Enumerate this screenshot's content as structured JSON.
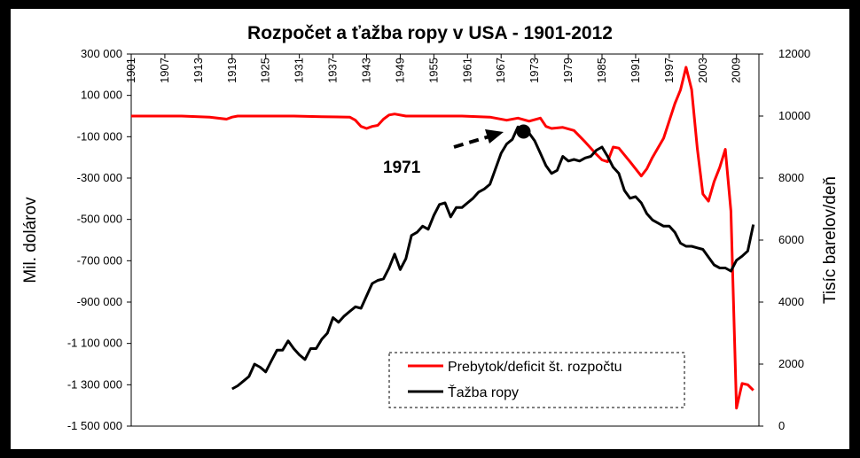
{
  "chart_data": {
    "type": "line",
    "title": "Rozpočet a ťažba ropy v USA - 1901-2012",
    "ylabel": "Mil. dolárov",
    "y2label": "Tisíc barelov/deň",
    "ylim": [
      -1500000,
      300000
    ],
    "y2lim": [
      0,
      12000
    ],
    "xlim": [
      1901,
      2013
    ],
    "y_ticks": [
      "300 000",
      "100 000",
      "-100 000",
      "-300 000",
      "-500 000",
      "-700 000",
      "-900 000",
      "-1 100 000",
      "-1 300 000",
      "-1 500 000"
    ],
    "y_tick_values": [
      300000,
      100000,
      -100000,
      -300000,
      -500000,
      -700000,
      -900000,
      -1100000,
      -1300000,
      -1500000
    ],
    "y2_ticks": [
      "12000",
      "10000",
      "8000",
      "6000",
      "4000",
      "2000",
      "0"
    ],
    "y2_tick_values": [
      12000,
      10000,
      8000,
      6000,
      4000,
      2000,
      0
    ],
    "x_ticks": [
      "1901",
      "1907",
      "1913",
      "1919",
      "1925",
      "1931",
      "1937",
      "1943",
      "1949",
      "1955",
      "1961",
      "1967",
      "1973",
      "1979",
      "1985",
      "1991",
      "1997",
      "2003",
      "2009"
    ],
    "x_tick_values": [
      1901,
      1907,
      1913,
      1919,
      1925,
      1931,
      1937,
      1943,
      1949,
      1955,
      1961,
      1967,
      1973,
      1979,
      1985,
      1991,
      1997,
      2003,
      2009
    ],
    "grid": false,
    "legend_position": "bottom-center",
    "annotation": {
      "label": "1971",
      "x": 1971,
      "y2": 9500
    },
    "series": [
      {
        "name": "Prebytok/deficit št. rozpočtu",
        "color": "#ff0000",
        "axis": "left",
        "x": [
          1901,
          1905,
          1910,
          1915,
          1918,
          1919,
          1920,
          1925,
          1930,
          1935,
          1940,
          1941,
          1942,
          1943,
          1944,
          1945,
          1946,
          1947,
          1948,
          1950,
          1955,
          1960,
          1965,
          1968,
          1970,
          1972,
          1974,
          1975,
          1976,
          1978,
          1980,
          1982,
          1984,
          1985,
          1986,
          1987,
          1988,
          1990,
          1992,
          1993,
          1994,
          1996,
          1998,
          1999,
          2000,
          2001,
          2002,
          2003,
          2004,
          2005,
          2006,
          2007,
          2008,
          2009,
          2010,
          2011,
          2012
        ],
        "values": [
          0,
          0,
          0,
          -5000,
          -15000,
          -5000,
          0,
          0,
          0,
          -3000,
          -5000,
          -20000,
          -50000,
          -60000,
          -50000,
          -45000,
          -15000,
          5000,
          10000,
          0,
          0,
          0,
          -5000,
          -20000,
          -10000,
          -25000,
          -10000,
          -50000,
          -60000,
          -55000,
          -70000,
          -125000,
          -185000,
          -212000,
          -221000,
          -150000,
          -155000,
          -221000,
          -290000,
          -255000,
          -200000,
          -107000,
          60000,
          126000,
          236000,
          128000,
          -157000,
          -377000,
          -412000,
          -318000,
          -248000,
          -161000,
          -459000,
          -1413000,
          -1294000,
          -1300000,
          -1327000
        ]
      },
      {
        "name": "Ťažba ropy",
        "color": "#000000",
        "axis": "right",
        "x": [
          1919,
          1920,
          1921,
          1922,
          1923,
          1924,
          1925,
          1926,
          1927,
          1928,
          1929,
          1930,
          1931,
          1932,
          1933,
          1934,
          1935,
          1936,
          1937,
          1938,
          1939,
          1940,
          1941,
          1942,
          1943,
          1944,
          1945,
          1946,
          1947,
          1948,
          1949,
          1950,
          1951,
          1952,
          1953,
          1954,
          1955,
          1956,
          1957,
          1958,
          1959,
          1960,
          1961,
          1962,
          1963,
          1964,
          1965,
          1966,
          1967,
          1968,
          1969,
          1970,
          1971,
          1972,
          1973,
          1974,
          1975,
          1976,
          1977,
          1978,
          1979,
          1980,
          1981,
          1982,
          1983,
          1984,
          1985,
          1986,
          1987,
          1988,
          1989,
          1990,
          1991,
          1992,
          1993,
          1994,
          1995,
          1996,
          1997,
          1998,
          1999,
          2000,
          2001,
          2002,
          2003,
          2004,
          2005,
          2006,
          2007,
          2008,
          2009,
          2010,
          2011,
          2012
        ],
        "values": [
          1200,
          1300,
          1450,
          1600,
          2000,
          1900,
          1750,
          2100,
          2450,
          2450,
          2750,
          2500,
          2300,
          2150,
          2500,
          2500,
          2800,
          3000,
          3500,
          3350,
          3550,
          3700,
          3850,
          3800,
          4200,
          4600,
          4700,
          4750,
          5100,
          5550,
          5050,
          5400,
          6150,
          6250,
          6450,
          6350,
          6800,
          7150,
          7200,
          6750,
          7050,
          7050,
          7200,
          7350,
          7550,
          7650,
          7800,
          8300,
          8800,
          9100,
          9250,
          9650,
          9450,
          9450,
          9200,
          8800,
          8400,
          8150,
          8250,
          8700,
          8550,
          8600,
          8550,
          8650,
          8700,
          8900,
          9000,
          8700,
          8350,
          8150,
          7600,
          7350,
          7400,
          7200,
          6850,
          6650,
          6550,
          6450,
          6450,
          6250,
          5900,
          5800,
          5800,
          5750,
          5700,
          5450,
          5200,
          5100,
          5100,
          5000,
          5350,
          5480,
          5650,
          6500
        ]
      }
    ]
  }
}
